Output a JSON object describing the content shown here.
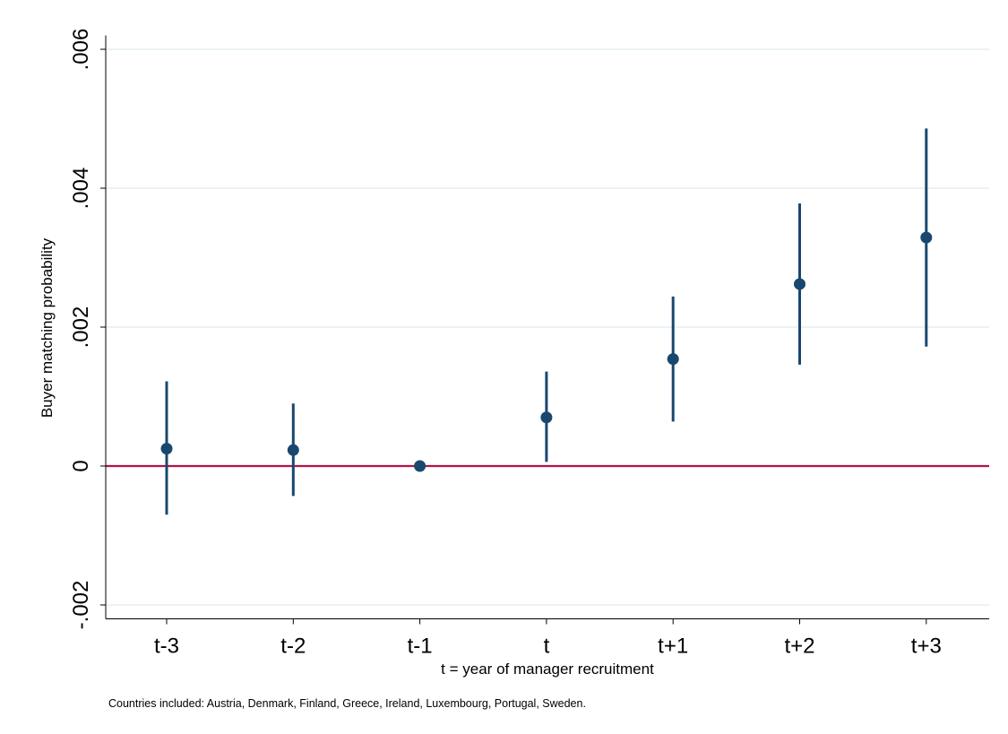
{
  "chart_data": {
    "type": "scatter",
    "title": "",
    "xlabel": "t = year of manager recruitment",
    "ylabel": "Buyer matching probability",
    "note": "Countries included: Austria, Denmark, Finland, Greece, Ireland, Luxembourg, Portugal, Sweden.",
    "categories": [
      "t-3",
      "t-2",
      "t-1",
      "t",
      "t+1",
      "t+2",
      "t+3"
    ],
    "estimates": [
      0.00025,
      0.00023,
      0.0,
      0.0007,
      0.00154,
      0.00262,
      0.00329
    ],
    "ci_lower": [
      -0.0007,
      -0.00043,
      0.0,
      6e-05,
      0.00064,
      0.00146,
      0.00172
    ],
    "ci_upper": [
      0.00122,
      0.0009,
      0.0,
      0.00136,
      0.00244,
      0.00378,
      0.00486
    ],
    "yticks": [
      -0.002,
      0,
      0.002,
      0.004,
      0.006
    ],
    "ytick_labels": [
      "-.002",
      "0",
      ".002",
      ".004",
      ".006"
    ],
    "ylim": [
      -0.0022,
      0.0062
    ],
    "reference_line": 0,
    "grid": true,
    "colors": {
      "marker": "#1a476f",
      "reference": "#b5124a",
      "grid": "#e6eeee",
      "axis": "#000000"
    }
  }
}
